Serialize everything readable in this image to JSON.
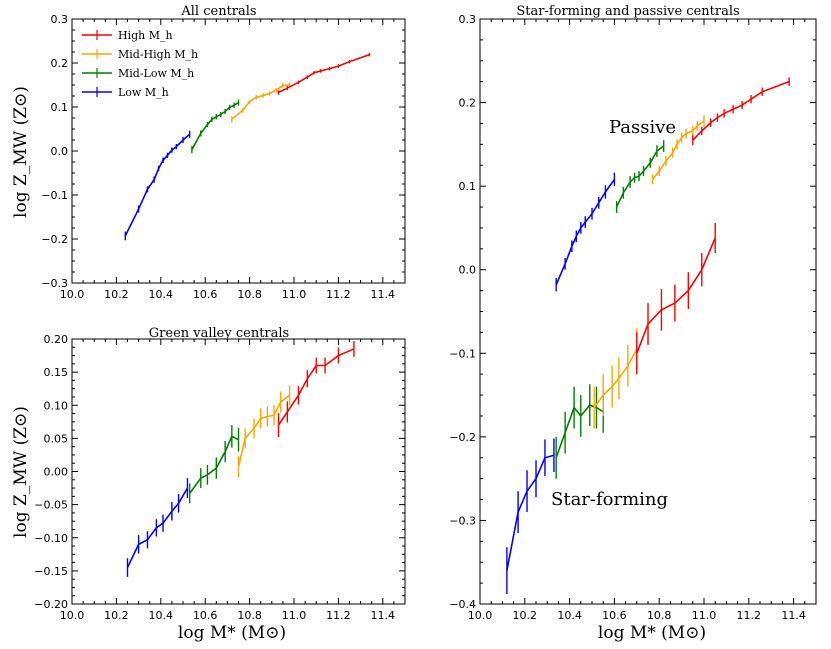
{
  "figure": {
    "xlabel_bottom": "log M* (M⊙)",
    "ylabel": "log Z_MW (Z⊙)"
  },
  "colors": {
    "high": "#ff0000",
    "midhigh": "#ffa500",
    "midlow": "#008000",
    "low": "#0000ff"
  },
  "legend": {
    "entries": [
      {
        "label": "High M_h",
        "color": "#ff0000"
      },
      {
        "label": "Mid-High M_h",
        "color": "#ffa500"
      },
      {
        "label": "Mid-Low M_h",
        "color": "#008000"
      },
      {
        "label": "Low M_h",
        "color": "#0000ff"
      }
    ],
    "position": "upper-left"
  },
  "annotations": {
    "passive": {
      "text": "Passive",
      "color": "#ff0000"
    },
    "star_forming": {
      "text": "Star-forming",
      "color": "#0000ff"
    }
  },
  "chart_data": [
    {
      "id": "all",
      "type": "line",
      "title": "All centrals",
      "xlim": [
        10.0,
        11.5
      ],
      "ylim": [
        -0.3,
        0.3
      ],
      "xticks": [
        "10.0",
        "10.2",
        "10.4",
        "10.6",
        "10.8",
        "11.0",
        "11.2",
        "11.4"
      ],
      "yticks": [
        "−0.3",
        "−0.2",
        "−0.1",
        "0.0",
        "0.1",
        "0.2",
        "0.3"
      ],
      "ytick_values": [
        -0.3,
        -0.2,
        -0.1,
        0.0,
        0.1,
        0.2,
        0.3
      ],
      "series": [
        {
          "name": "Low M_h",
          "color": "#0000ff",
          "x": [
            10.24,
            10.3,
            10.34,
            10.37,
            10.39,
            10.41,
            10.43,
            10.45,
            10.47,
            10.5,
            10.53
          ],
          "y": [
            -0.193,
            -0.132,
            -0.087,
            -0.065,
            -0.04,
            -0.021,
            -0.01,
            0.002,
            0.01,
            0.025,
            0.038
          ],
          "err": [
            0.01,
            0.008,
            0.007,
            0.007,
            0.006,
            0.006,
            0.006,
            0.006,
            0.006,
            0.007,
            0.008
          ]
        },
        {
          "name": "Mid-Low M_h",
          "color": "#008000",
          "x": [
            10.54,
            10.58,
            10.61,
            10.63,
            10.65,
            10.67,
            10.69,
            10.71,
            10.73,
            10.75
          ],
          "y": [
            0.003,
            0.04,
            0.06,
            0.072,
            0.078,
            0.083,
            0.09,
            0.099,
            0.104,
            0.11
          ],
          "err": [
            0.008,
            0.007,
            0.006,
            0.006,
            0.006,
            0.006,
            0.006,
            0.006,
            0.006,
            0.007
          ]
        },
        {
          "name": "Mid-High M_h",
          "color": "#ffa500",
          "x": [
            10.72,
            10.77,
            10.8,
            10.83,
            10.86,
            10.89,
            10.92,
            10.95,
            10.98
          ],
          "y": [
            0.072,
            0.093,
            0.112,
            0.122,
            0.126,
            0.131,
            0.138,
            0.149,
            0.15
          ],
          "err": [
            0.007,
            0.006,
            0.005,
            0.005,
            0.005,
            0.005,
            0.005,
            0.005,
            0.006
          ]
        },
        {
          "name": "High M_h",
          "color": "#ff0000",
          "x": [
            10.93,
            10.97,
            11.02,
            11.06,
            11.09,
            11.12,
            11.16,
            11.2,
            11.25,
            11.34
          ],
          "y": [
            0.133,
            0.143,
            0.156,
            0.168,
            0.178,
            0.182,
            0.187,
            0.193,
            0.203,
            0.219
          ],
          "err": [
            0.005,
            0.005,
            0.004,
            0.004,
            0.004,
            0.004,
            0.004,
            0.004,
            0.004,
            0.004
          ]
        }
      ]
    },
    {
      "id": "green",
      "type": "line",
      "title": "Green valley centrals",
      "xlim": [
        10.0,
        11.5
      ],
      "ylim": [
        -0.2,
        0.2
      ],
      "xticks": [
        "10.0",
        "10.2",
        "10.4",
        "10.6",
        "10.8",
        "11.0",
        "11.2",
        "11.4"
      ],
      "yticks": [
        "−0.20",
        "−0.15",
        "−0.10",
        "−0.05",
        "0.00",
        "0.05",
        "0.10",
        "0.15",
        "0.20"
      ],
      "ytick_values": [
        -0.2,
        -0.15,
        -0.1,
        -0.05,
        0.0,
        0.05,
        0.1,
        0.15,
        0.2
      ],
      "series": [
        {
          "name": "Low M_h",
          "color": "#0000ff",
          "x": [
            10.25,
            10.3,
            10.34,
            10.38,
            10.41,
            10.45,
            10.48,
            10.52
          ],
          "y": [
            -0.145,
            -0.11,
            -0.103,
            -0.085,
            -0.078,
            -0.06,
            -0.048,
            -0.025
          ],
          "err": [
            0.014,
            0.014,
            0.013,
            0.013,
            0.013,
            0.014,
            0.014,
            0.015
          ]
        },
        {
          "name": "Mid-Low M_h",
          "color": "#008000",
          "x": [
            10.53,
            10.58,
            10.61,
            10.65,
            10.69,
            10.72,
            10.75
          ],
          "y": [
            -0.033,
            -0.01,
            -0.005,
            0.005,
            0.03,
            0.053,
            0.048
          ],
          "err": [
            0.015,
            0.015,
            0.015,
            0.016,
            0.016,
            0.017,
            0.018
          ]
        },
        {
          "name": "Mid-High M_h",
          "color": "#ffa500",
          "x": [
            10.75,
            10.78,
            10.82,
            10.85,
            10.88,
            10.91,
            10.94,
            10.98
          ],
          "y": [
            0.007,
            0.05,
            0.065,
            0.08,
            0.083,
            0.085,
            0.105,
            0.115
          ],
          "err": [
            0.016,
            0.015,
            0.015,
            0.015,
            0.015,
            0.015,
            0.016,
            0.015
          ]
        },
        {
          "name": "High M_h",
          "color": "#ff0000",
          "x": [
            10.93,
            10.97,
            11.02,
            11.06,
            11.1,
            11.14,
            11.2,
            11.27
          ],
          "y": [
            0.07,
            0.09,
            0.115,
            0.14,
            0.16,
            0.16,
            0.175,
            0.185
          ],
          "err": [
            0.018,
            0.016,
            0.014,
            0.013,
            0.012,
            0.012,
            0.012,
            0.012
          ]
        }
      ]
    },
    {
      "id": "sfpass",
      "type": "line",
      "title": "Star-forming and passive centrals",
      "xlim": [
        10.0,
        11.5
      ],
      "ylim": [
        -0.4,
        0.3
      ],
      "xticks": [
        "10.0",
        "10.2",
        "10.4",
        "10.6",
        "10.8",
        "11.0",
        "11.2",
        "11.4"
      ],
      "yticks": [
        "−0.4",
        "−0.3",
        "−0.2",
        "−0.1",
        "0.0",
        "0.1",
        "0.2",
        "0.3"
      ],
      "ytick_values": [
        -0.4,
        -0.3,
        -0.2,
        -0.1,
        0.0,
        0.1,
        0.2,
        0.3
      ],
      "passive": [
        {
          "name": "Low M_h",
          "color": "#0000ff",
          "x": [
            10.34,
            10.38,
            10.41,
            10.43,
            10.45,
            10.47,
            10.5,
            10.53,
            10.56,
            10.6
          ],
          "y": [
            -0.018,
            0.007,
            0.028,
            0.04,
            0.05,
            0.057,
            0.067,
            0.08,
            0.093,
            0.108
          ],
          "err": [
            0.008,
            0.007,
            0.007,
            0.007,
            0.007,
            0.007,
            0.007,
            0.007,
            0.008,
            0.008
          ]
        },
        {
          "name": "Mid-Low M_h",
          "color": "#008000",
          "x": [
            10.61,
            10.64,
            10.67,
            10.69,
            10.71,
            10.73,
            10.76,
            10.79,
            10.82
          ],
          "y": [
            0.075,
            0.092,
            0.105,
            0.11,
            0.112,
            0.118,
            0.128,
            0.142,
            0.148
          ],
          "err": [
            0.007,
            0.007,
            0.007,
            0.006,
            0.006,
            0.006,
            0.006,
            0.007,
            0.007
          ]
        },
        {
          "name": "Mid-High M_h",
          "color": "#ffa500",
          "x": [
            10.77,
            10.8,
            10.83,
            10.86,
            10.88,
            10.9,
            10.92,
            10.95,
            10.97,
            11.0
          ],
          "y": [
            0.108,
            0.118,
            0.13,
            0.14,
            0.15,
            0.158,
            0.163,
            0.166,
            0.172,
            0.178
          ],
          "err": [
            0.006,
            0.006,
            0.006,
            0.006,
            0.006,
            0.006,
            0.006,
            0.006,
            0.006,
            0.007
          ]
        },
        {
          "name": "High M_h",
          "color": "#ff0000",
          "x": [
            10.95,
            10.99,
            11.03,
            11.06,
            11.09,
            11.13,
            11.17,
            11.21,
            11.26,
            11.38
          ],
          "y": [
            0.155,
            0.166,
            0.176,
            0.182,
            0.187,
            0.192,
            0.197,
            0.204,
            0.213,
            0.225
          ],
          "err": [
            0.006,
            0.005,
            0.005,
            0.005,
            0.005,
            0.005,
            0.005,
            0.005,
            0.005,
            0.005
          ]
        }
      ],
      "star_forming": [
        {
          "name": "Low M_h",
          "color": "#0000ff",
          "x": [
            10.12,
            10.17,
            10.21,
            10.25,
            10.29,
            10.33
          ],
          "y": [
            -0.36,
            -0.29,
            -0.265,
            -0.25,
            -0.225,
            -0.222
          ],
          "err": [
            0.028,
            0.025,
            0.025,
            0.022,
            0.022,
            0.02
          ]
        },
        {
          "name": "Mid-Low M_h",
          "color": "#008000",
          "x": [
            10.34,
            10.38,
            10.42,
            10.45,
            10.49,
            10.52,
            10.55
          ],
          "y": [
            -0.225,
            -0.195,
            -0.165,
            -0.175,
            -0.162,
            -0.165,
            -0.17
          ],
          "err": [
            0.025,
            0.025,
            0.025,
            0.025,
            0.025,
            0.025,
            0.025
          ]
        },
        {
          "name": "Mid-High M_h",
          "color": "#ffa500",
          "x": [
            10.51,
            10.55,
            10.59,
            10.62,
            10.66,
            10.7
          ],
          "y": [
            -0.165,
            -0.15,
            -0.14,
            -0.13,
            -0.115,
            -0.095
          ],
          "err": [
            0.025,
            0.025,
            0.025,
            0.025,
            0.025,
            0.025
          ]
        },
        {
          "name": "High M_h",
          "color": "#ff0000",
          "x": [
            10.7,
            10.75,
            10.81,
            10.87,
            10.93,
            10.99,
            11.05
          ],
          "y": [
            -0.1,
            -0.065,
            -0.048,
            -0.04,
            -0.025,
            0.0,
            0.038
          ],
          "err": [
            0.025,
            0.025,
            0.025,
            0.022,
            0.022,
            0.02,
            0.018
          ]
        }
      ]
    }
  ]
}
